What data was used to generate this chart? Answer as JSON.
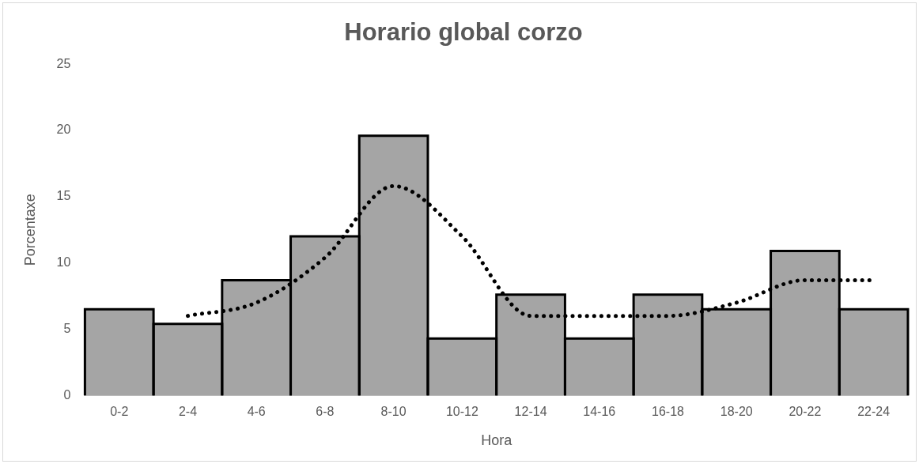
{
  "chart_data": {
    "type": "bar",
    "title": "Horario global corzo",
    "xlabel": "Hora",
    "ylabel": "Porcentaxe",
    "categories": [
      "0-2",
      "2-4",
      "4-6",
      "6-8",
      "8-10",
      "10-12",
      "12-14",
      "14-16",
      "16-18",
      "18-20",
      "20-22",
      "22-24"
    ],
    "series": [
      {
        "color": "#a5a5a5",
        "values": [
          6.5,
          5.4,
          8.7,
          12.0,
          19.6,
          4.3,
          7.6,
          4.3,
          7.6,
          6.5,
          10.9,
          6.5
        ]
      },
      {
        "type": "line",
        "color": "#000000",
        "line_style": "dotted",
        "values": [
          null,
          6.0,
          7.0,
          10.4,
          15.8,
          12.0,
          6.0,
          6.0,
          6.0,
          7.0,
          8.7,
          8.7
        ]
      }
    ],
    "ylim": [
      0,
      25
    ],
    "yticks": [
      0,
      5,
      10,
      15,
      20,
      25
    ],
    "grid": false,
    "legend": false
  }
}
